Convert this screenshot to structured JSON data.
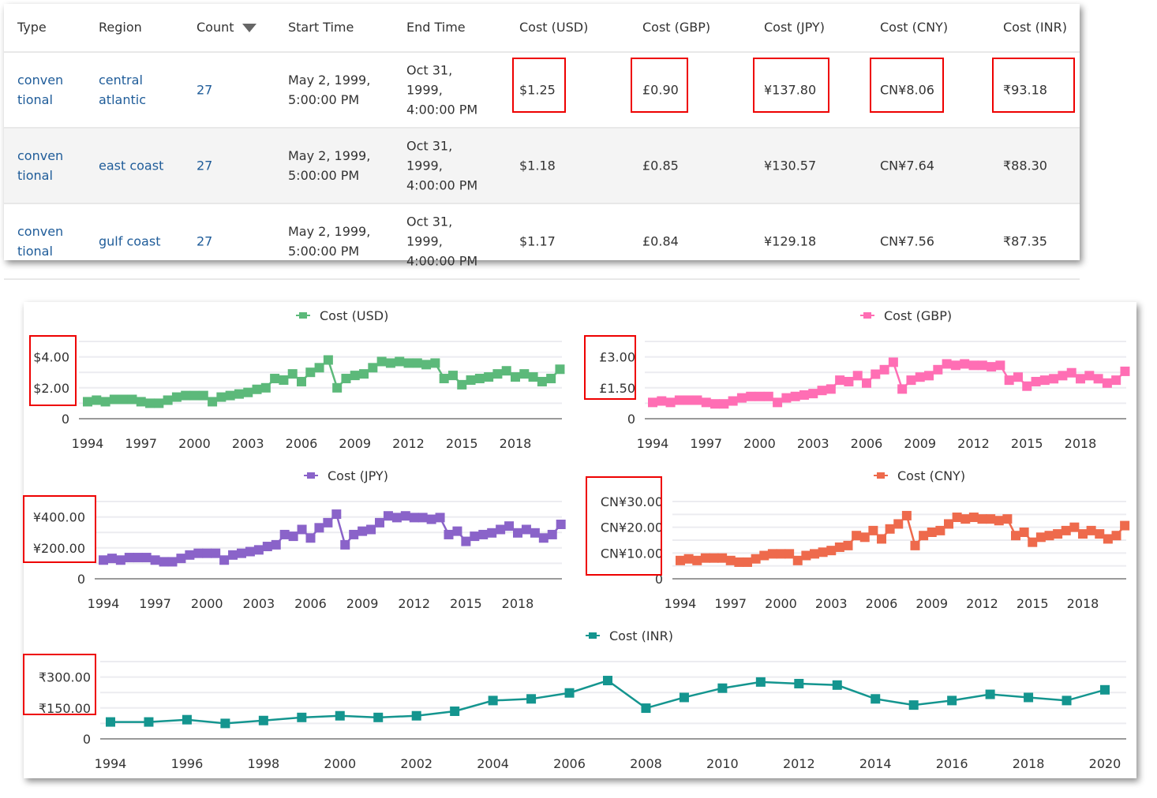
{
  "table": {
    "headers": [
      "Type",
      "Region",
      "Count",
      "Start Time",
      "End Time",
      "Cost (USD)",
      "Cost (GBP)",
      "Cost (JPY)",
      "Cost (CNY)",
      "Cost (INR)"
    ],
    "sorted_column": "Count",
    "rows": [
      {
        "type": [
          "conven",
          "tional"
        ],
        "region": [
          "central",
          "atlantic"
        ],
        "count": "27",
        "start": [
          "May 2, 1999,",
          "5:00:00 PM"
        ],
        "end": [
          "Oct 31,",
          "1999,",
          "4:00:00 PM"
        ],
        "usd": "$1.25",
        "gbp": "£0.90",
        "jpy": "¥137.80",
        "cny": "CN¥8.06",
        "inr": "₹93.18"
      },
      {
        "type": [
          "conven",
          "tional"
        ],
        "region": [
          "east coast"
        ],
        "count": "27",
        "start": [
          "May 2, 1999,",
          "5:00:00 PM"
        ],
        "end": [
          "Oct 31,",
          "1999,",
          "4:00:00 PM"
        ],
        "usd": "$1.18",
        "gbp": "£0.85",
        "jpy": "¥130.57",
        "cny": "CN¥7.64",
        "inr": "₹88.30"
      },
      {
        "type": [
          "conven",
          "tional"
        ],
        "region": [
          "gulf coast"
        ],
        "count": "27",
        "start": [
          "May 2, 1999,",
          "5:00:00 PM"
        ],
        "end": [
          "Oct 31,",
          "1999,",
          "4:00:00 PM"
        ],
        "usd": "$1.17",
        "gbp": "£0.84",
        "jpy": "¥129.18",
        "cny": "CN¥7.56",
        "inr": "₹87.35"
      }
    ]
  },
  "chart_data": [
    {
      "type": "line",
      "legend": "Cost (USD)",
      "color": "#5cb97a",
      "grid": true,
      "legend_position": "top",
      "ylim": [
        0,
        5
      ],
      "y_ticks": [
        0,
        2,
        4
      ],
      "y_tick_labels": [
        "0",
        "$2.00",
        "$4.00"
      ],
      "x_ticks": [
        1994,
        1997,
        2000,
        2003,
        2006,
        2009,
        2012,
        2015,
        2018
      ],
      "x_tick_labels": [
        "1994",
        "1997",
        "2000",
        "2003",
        "2006",
        "2009",
        "2012",
        "2015",
        "2018"
      ],
      "x": [
        1994,
        1994.5,
        1995,
        1995.5,
        1996,
        1996.5,
        1997,
        1997.5,
        1998,
        1998.5,
        1999,
        1999.5,
        2000,
        2000.5,
        2001,
        2001.5,
        2002,
        2002.5,
        2003,
        2003.5,
        2004,
        2004.5,
        2005,
        2005.5,
        2006,
        2006.5,
        2007,
        2007.5,
        2008,
        2008.5,
        2009,
        2009.5,
        2010,
        2010.5,
        2011,
        2011.5,
        2012,
        2012.5,
        2013,
        2013.5,
        2014,
        2014.5,
        2015,
        2015.5,
        2016,
        2016.5,
        2017,
        2017.5,
        2018,
        2018.5,
        2019,
        2019.5,
        2020,
        2020.5
      ],
      "values": [
        1.1,
        1.2,
        1.1,
        1.25,
        1.25,
        1.25,
        1.1,
        1.0,
        1.0,
        1.2,
        1.4,
        1.5,
        1.5,
        1.5,
        1.1,
        1.4,
        1.5,
        1.6,
        1.7,
        1.9,
        2.0,
        2.6,
        2.5,
        2.9,
        2.4,
        3.0,
        3.3,
        3.8,
        2.0,
        2.6,
        2.8,
        2.9,
        3.3,
        3.7,
        3.6,
        3.7,
        3.6,
        3.6,
        3.5,
        3.6,
        2.6,
        2.8,
        2.2,
        2.5,
        2.6,
        2.7,
        2.9,
        3.1,
        2.7,
        2.9,
        2.7,
        2.4,
        2.6,
        3.2
      ]
    },
    {
      "type": "line",
      "legend": "Cost (GBP)",
      "color": "#ff6eb4",
      "grid": true,
      "legend_position": "top",
      "ylim": [
        0,
        3.75
      ],
      "y_ticks": [
        0,
        1.5,
        3
      ],
      "y_tick_labels": [
        "0",
        "£1.50",
        "£3.00"
      ],
      "x_ticks": [
        1994,
        1997,
        2000,
        2003,
        2006,
        2009,
        2012,
        2015,
        2018
      ],
      "x_tick_labels": [
        "1994",
        "1997",
        "2000",
        "2003",
        "2006",
        "2009",
        "2012",
        "2015",
        "2018"
      ],
      "x": [
        1994,
        1994.5,
        1995,
        1995.5,
        1996,
        1996.5,
        1997,
        1997.5,
        1998,
        1998.5,
        1999,
        1999.5,
        2000,
        2000.5,
        2001,
        2001.5,
        2002,
        2002.5,
        2003,
        2003.5,
        2004,
        2004.5,
        2005,
        2005.5,
        2006,
        2006.5,
        2007,
        2007.5,
        2008,
        2008.5,
        2009,
        2009.5,
        2010,
        2010.5,
        2011,
        2011.5,
        2012,
        2012.5,
        2013,
        2013.5,
        2014,
        2014.5,
        2015,
        2015.5,
        2016,
        2016.5,
        2017,
        2017.5,
        2018,
        2018.5,
        2019,
        2019.5,
        2020,
        2020.5
      ],
      "values": [
        0.79,
        0.86,
        0.79,
        0.9,
        0.9,
        0.9,
        0.79,
        0.72,
        0.72,
        0.86,
        1.01,
        1.08,
        1.08,
        1.08,
        0.79,
        1.01,
        1.08,
        1.15,
        1.22,
        1.37,
        1.44,
        1.87,
        1.8,
        2.09,
        1.73,
        2.16,
        2.38,
        2.74,
        1.44,
        1.87,
        2.02,
        2.09,
        2.38,
        2.66,
        2.59,
        2.66,
        2.59,
        2.59,
        2.52,
        2.59,
        1.87,
        2.02,
        1.58,
        1.8,
        1.87,
        1.94,
        2.09,
        2.23,
        1.94,
        2.09,
        1.94,
        1.73,
        1.87,
        2.3
      ]
    },
    {
      "type": "line",
      "legend": "Cost (JPY)",
      "color": "#8a63c9",
      "grid": true,
      "legend_position": "top",
      "ylim": [
        0,
        500
      ],
      "y_ticks": [
        0,
        200,
        400
      ],
      "y_tick_labels": [
        "0",
        "¥200.00",
        "¥400.00"
      ],
      "x_ticks": [
        1994,
        1997,
        2000,
        2003,
        2006,
        2009,
        2012,
        2015,
        2018
      ],
      "x_tick_labels": [
        "1994",
        "1997",
        "2000",
        "2003",
        "2006",
        "2009",
        "2012",
        "2015",
        "2018"
      ],
      "x": [
        1994,
        1994.5,
        1995,
        1995.5,
        1996,
        1996.5,
        1997,
        1997.5,
        1998,
        1998.5,
        1999,
        1999.5,
        2000,
        2000.5,
        2001,
        2001.5,
        2002,
        2002.5,
        2003,
        2003.5,
        2004,
        2004.5,
        2005,
        2005.5,
        2006,
        2006.5,
        2007,
        2007.5,
        2008,
        2008.5,
        2009,
        2009.5,
        2010,
        2010.5,
        2011,
        2011.5,
        2012,
        2012.5,
        2013,
        2013.5,
        2014,
        2014.5,
        2015,
        2015.5,
        2016,
        2016.5,
        2017,
        2017.5,
        2018,
        2018.5,
        2019,
        2019.5,
        2020,
        2020.5
      ],
      "values": [
        121,
        132,
        121,
        137.5,
        137.5,
        137.5,
        121,
        110,
        110,
        132,
        154,
        165,
        165,
        165,
        121,
        154,
        165,
        176,
        187,
        209,
        220,
        286,
        275,
        319,
        264,
        330,
        363,
        418,
        220,
        286,
        308,
        319,
        363,
        407,
        396,
        407,
        396,
        396,
        385,
        396,
        286,
        308,
        242,
        275,
        286,
        297,
        319,
        341,
        297,
        319,
        297,
        264,
        286,
        352
      ]
    },
    {
      "type": "line",
      "legend": "Cost (CNY)",
      "color": "#ee6a4c",
      "grid": true,
      "legend_position": "top",
      "ylim": [
        0,
        30
      ],
      "y_ticks": [
        0,
        10,
        20,
        30
      ],
      "y_tick_labels": [
        "0",
        "CN¥10.00",
        "CN¥20.00",
        "CN¥30.00"
      ],
      "x_ticks": [
        1994,
        1997,
        2000,
        2003,
        2006,
        2009,
        2012,
        2015,
        2018
      ],
      "x_tick_labels": [
        "1994",
        "1997",
        "2000",
        "2003",
        "2006",
        "2009",
        "2012",
        "2015",
        "2018"
      ],
      "x": [
        1994,
        1994.5,
        1995,
        1995.5,
        1996,
        1996.5,
        1997,
        1997.5,
        1998,
        1998.5,
        1999,
        1999.5,
        2000,
        2000.5,
        2001,
        2001.5,
        2002,
        2002.5,
        2003,
        2003.5,
        2004,
        2004.5,
        2005,
        2005.5,
        2006,
        2006.5,
        2007,
        2007.5,
        2008,
        2008.5,
        2009,
        2009.5,
        2010,
        2010.5,
        2011,
        2011.5,
        2012,
        2012.5,
        2013,
        2013.5,
        2014,
        2014.5,
        2015,
        2015.5,
        2016,
        2016.5,
        2017,
        2017.5,
        2018,
        2018.5,
        2019,
        2019.5,
        2020,
        2020.5
      ],
      "values": [
        7.1,
        7.74,
        7.1,
        8.06,
        8.06,
        8.06,
        7.1,
        6.45,
        6.45,
        7.74,
        9.03,
        9.68,
        9.68,
        9.68,
        7.1,
        9.03,
        9.68,
        10.32,
        10.97,
        12.26,
        12.9,
        16.77,
        16.13,
        18.71,
        15.48,
        19.35,
        21.29,
        24.51,
        12.9,
        16.77,
        18.06,
        18.71,
        21.29,
        23.87,
        23.22,
        23.87,
        23.22,
        23.22,
        22.58,
        23.22,
        16.77,
        18.06,
        14.19,
        16.13,
        16.77,
        17.42,
        18.71,
        20.0,
        17.42,
        18.71,
        17.42,
        15.48,
        16.77,
        20.64
      ]
    },
    {
      "type": "line",
      "legend": "Cost (INR)",
      "color": "#14958f",
      "grid": true,
      "legend_position": "top",
      "ylim": [
        0,
        375
      ],
      "y_ticks": [
        0,
        150,
        300
      ],
      "y_tick_labels": [
        "0",
        "₹150.00",
        "₹300.00"
      ],
      "x_ticks": [
        1994,
        1996,
        1998,
        2000,
        2002,
        2004,
        2006,
        2008,
        2010,
        2012,
        2014,
        2016,
        2018,
        2020
      ],
      "x_tick_labels": [
        "1994",
        "1996",
        "1998",
        "2000",
        "2002",
        "2004",
        "2006",
        "2008",
        "2010",
        "2012",
        "2014",
        "2016",
        "2018",
        "2020"
      ],
      "x": [
        1994,
        1995,
        1996,
        1997,
        1998,
        1999,
        2000,
        2001,
        2002,
        2003,
        2004,
        2005,
        2006,
        2007,
        2008,
        2009,
        2010,
        2011,
        2012,
        2013,
        2014,
        2015,
        2016,
        2017,
        2018,
        2019,
        2020
      ],
      "values": [
        82,
        82,
        93,
        75,
        89,
        104,
        112,
        104,
        112,
        134,
        186,
        194,
        223,
        283,
        149,
        201,
        246,
        276,
        268,
        261,
        194,
        164,
        186,
        216,
        201,
        186,
        238
      ]
    }
  ]
}
